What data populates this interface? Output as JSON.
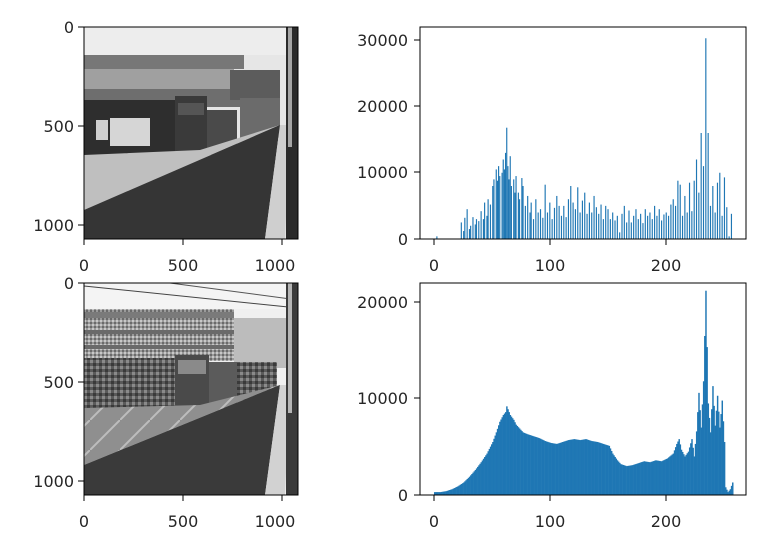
{
  "figure": {
    "background": "#ffffff",
    "bar_color": "#1f77b4",
    "axis_color": "#000000",
    "text_color": "#262626"
  },
  "chart_data": [
    {
      "type": "image",
      "description_kind": "grayscale image (segmented/posterized street scene with tram)",
      "x_ticks": [
        "0",
        "500",
        "1000"
      ],
      "y_ticks": [
        "0",
        "500",
        "1000"
      ],
      "x_tick_values": [
        0,
        500,
        1000
      ],
      "y_tick_values": [
        0,
        500,
        1000
      ],
      "xlim": [
        0,
        1080
      ],
      "ylim": [
        1080,
        0
      ]
    },
    {
      "type": "bar",
      "x_ticks": [
        "0",
        "100",
        "200"
      ],
      "y_ticks": [
        "0",
        "10000",
        "20000",
        "30000"
      ],
      "x_tick_values": [
        0,
        100,
        200
      ],
      "y_tick_values": [
        0,
        10000,
        20000,
        30000
      ],
      "xlim": [
        -12,
        268
      ],
      "ylim": [
        0,
        32000
      ],
      "bin_width": 1,
      "bins": [
        [
          2,
          400
        ],
        [
          23,
          2500
        ],
        [
          25,
          1200
        ],
        [
          26,
          3200
        ],
        [
          28,
          4500
        ],
        [
          30,
          1500
        ],
        [
          31,
          2000
        ],
        [
          33,
          3300
        ],
        [
          35,
          2200
        ],
        [
          36,
          3000
        ],
        [
          38,
          2700
        ],
        [
          40,
          4200
        ],
        [
          42,
          3000
        ],
        [
          43,
          5500
        ],
        [
          45,
          3500
        ],
        [
          46,
          6000
        ],
        [
          48,
          5200
        ],
        [
          50,
          8000
        ],
        [
          51,
          9000
        ],
        [
          53,
          10500
        ],
        [
          54,
          8800
        ],
        [
          55,
          11000
        ],
        [
          56,
          9500
        ],
        [
          58,
          10000
        ],
        [
          59,
          12000
        ],
        [
          60,
          10500
        ],
        [
          61,
          13000
        ],
        [
          62,
          16800
        ],
        [
          63,
          11000
        ],
        [
          64,
          9000
        ],
        [
          65,
          12500
        ],
        [
          66,
          8000
        ],
        [
          68,
          9000
        ],
        [
          69,
          7000
        ],
        [
          70,
          9500
        ],
        [
          72,
          7000
        ],
        [
          73,
          6000
        ],
        [
          75,
          9200
        ],
        [
          76,
          8000
        ],
        [
          78,
          5000
        ],
        [
          80,
          6500
        ],
        [
          82,
          4000
        ],
        [
          83,
          5500
        ],
        [
          85,
          3000
        ],
        [
          87,
          6000
        ],
        [
          89,
          4000
        ],
        [
          91,
          4500
        ],
        [
          93,
          3200
        ],
        [
          95,
          8200
        ],
        [
          97,
          4000
        ],
        [
          99,
          5500
        ],
        [
          101,
          3000
        ],
        [
          103,
          4700
        ],
        [
          105,
          6500
        ],
        [
          107,
          5000
        ],
        [
          109,
          3500
        ],
        [
          111,
          5000
        ],
        [
          113,
          3300
        ],
        [
          115,
          6000
        ],
        [
          117,
          8000
        ],
        [
          119,
          5500
        ],
        [
          121,
          4500
        ],
        [
          123,
          7800
        ],
        [
          125,
          4000
        ],
        [
          127,
          5800
        ],
        [
          129,
          7000
        ],
        [
          131,
          3800
        ],
        [
          133,
          5500
        ],
        [
          135,
          4000
        ],
        [
          137,
          6500
        ],
        [
          139,
          4800
        ],
        [
          141,
          3800
        ],
        [
          143,
          5200
        ],
        [
          145,
          3000
        ],
        [
          147,
          5000
        ],
        [
          149,
          4500
        ],
        [
          151,
          3000
        ],
        [
          153,
          4000
        ],
        [
          155,
          2800
        ],
        [
          157,
          3500
        ],
        [
          159,
          1000
        ],
        [
          161,
          3800
        ],
        [
          163,
          5000
        ],
        [
          165,
          2500
        ],
        [
          167,
          4300
        ],
        [
          169,
          2500
        ],
        [
          171,
          3500
        ],
        [
          173,
          4500
        ],
        [
          175,
          3000
        ],
        [
          177,
          3800
        ],
        [
          179,
          2400
        ],
        [
          181,
          4500
        ],
        [
          183,
          3500
        ],
        [
          185,
          4000
        ],
        [
          187,
          3000
        ],
        [
          189,
          5000
        ],
        [
          191,
          3500
        ],
        [
          193,
          4500
        ],
        [
          195,
          2800
        ],
        [
          197,
          3700
        ],
        [
          199,
          4000
        ],
        [
          201,
          3500
        ],
        [
          203,
          5200
        ],
        [
          205,
          6000
        ],
        [
          207,
          5000
        ],
        [
          209,
          8800
        ],
        [
          211,
          8200
        ],
        [
          213,
          3500
        ],
        [
          215,
          6500
        ],
        [
          217,
          4000
        ],
        [
          219,
          8500
        ],
        [
          221,
          4200
        ],
        [
          223,
          8800
        ],
        [
          225,
          12000
        ],
        [
          227,
          7000
        ],
        [
          229,
          16000
        ],
        [
          231,
          11000
        ],
        [
          233,
          30300
        ],
        [
          235,
          16000
        ],
        [
          237,
          5000
        ],
        [
          239,
          8000
        ],
        [
          241,
          4000
        ],
        [
          243,
          8500
        ],
        [
          245,
          10000
        ],
        [
          247,
          3500
        ],
        [
          249,
          9300
        ],
        [
          251,
          4800
        ],
        [
          253,
          400
        ],
        [
          255,
          3800
        ]
      ]
    },
    {
      "type": "image",
      "description_kind": "grayscale image (street scene with tram)",
      "x_ticks": [
        "0",
        "500",
        "1000"
      ],
      "y_ticks": [
        "0",
        "500",
        "1000"
      ],
      "x_tick_values": [
        0,
        500,
        1000
      ],
      "y_tick_values": [
        0,
        500,
        1000
      ],
      "xlim": [
        0,
        1080
      ],
      "ylim": [
        1080,
        0
      ]
    },
    {
      "type": "area",
      "x_ticks": [
        "0",
        "100",
        "200"
      ],
      "y_ticks": [
        "0",
        "10000",
        "20000"
      ],
      "x_tick_values": [
        0,
        100,
        200
      ],
      "y_tick_values": [
        0,
        10000,
        20000
      ],
      "xlim": [
        -12,
        268
      ],
      "ylim": [
        0,
        22000
      ],
      "points": [
        [
          0,
          300
        ],
        [
          5,
          300
        ],
        [
          10,
          400
        ],
        [
          15,
          600
        ],
        [
          20,
          900
        ],
        [
          25,
          1300
        ],
        [
          30,
          1900
        ],
        [
          35,
          2600
        ],
        [
          40,
          3400
        ],
        [
          45,
          4300
        ],
        [
          50,
          5500
        ],
        [
          53,
          6500
        ],
        [
          56,
          7600
        ],
        [
          59,
          8300
        ],
        [
          61,
          8600
        ],
        [
          62,
          9200
        ],
        [
          63,
          8900
        ],
        [
          65,
          8300
        ],
        [
          68,
          7800
        ],
        [
          70,
          7300
        ],
        [
          73,
          6900
        ],
        [
          76,
          6500
        ],
        [
          80,
          6300
        ],
        [
          85,
          6100
        ],
        [
          90,
          5900
        ],
        [
          95,
          5600
        ],
        [
          100,
          5400
        ],
        [
          105,
          5300
        ],
        [
          110,
          5500
        ],
        [
          115,
          5700
        ],
        [
          120,
          5800
        ],
        [
          125,
          5700
        ],
        [
          130,
          5800
        ],
        [
          135,
          5600
        ],
        [
          140,
          5500
        ],
        [
          145,
          5300
        ],
        [
          150,
          5100
        ],
        [
          153,
          4300
        ],
        [
          157,
          3600
        ],
        [
          160,
          3200
        ],
        [
          165,
          3000
        ],
        [
          170,
          3100
        ],
        [
          175,
          3300
        ],
        [
          180,
          3500
        ],
        [
          185,
          3400
        ],
        [
          190,
          3600
        ],
        [
          195,
          3500
        ],
        [
          200,
          3800
        ],
        [
          205,
          4300
        ],
        [
          208,
          5300
        ],
        [
          210,
          5800
        ],
        [
          212,
          4700
        ],
        [
          215,
          4000
        ],
        [
          218,
          4500
        ],
        [
          221,
          5800
        ],
        [
          223,
          4000
        ],
        [
          225,
          6600
        ],
        [
          227,
          10600
        ],
        [
          229,
          7000
        ],
        [
          231,
          11800
        ],
        [
          233,
          21200
        ],
        [
          235,
          9500
        ],
        [
          237,
          6500
        ],
        [
          239,
          11300
        ],
        [
          241,
          7200
        ],
        [
          243,
          10300
        ],
        [
          245,
          7000
        ],
        [
          247,
          9800
        ],
        [
          249,
          5500
        ],
        [
          250,
          800
        ],
        [
          252,
          300
        ],
        [
          254,
          600
        ],
        [
          256,
          1300
        ],
        [
          257,
          200
        ]
      ]
    }
  ]
}
